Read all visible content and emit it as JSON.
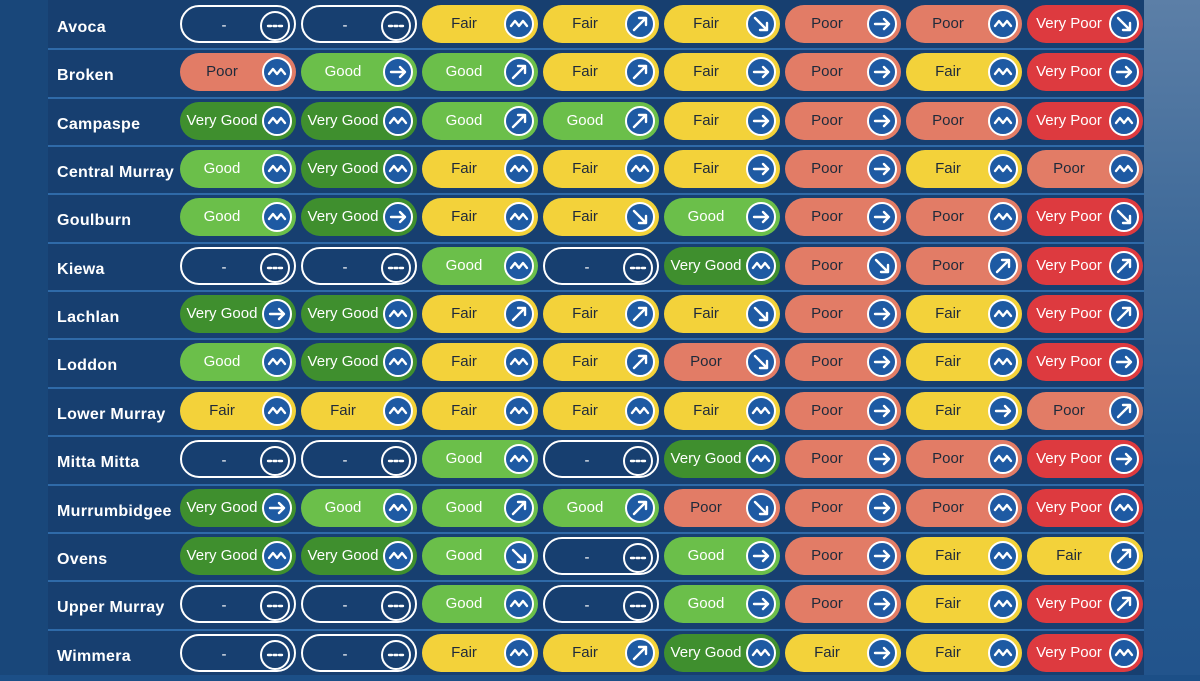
{
  "colors": {
    "very_good": "#3f8f2e",
    "good": "#6bbf4a",
    "fair": "#f3d23a",
    "poor": "#e27c66",
    "very_poor": "#dd3a3f",
    "no_data": "outline-white"
  },
  "rows": [
    {
      "name": "Avoca",
      "cells": [
        {
          "label": "-",
          "status": "none",
          "trend": "no-data-icon"
        },
        {
          "label": "-",
          "status": "none",
          "trend": "no-data-icon"
        },
        {
          "label": "Fair",
          "status": "fair",
          "trend": "variable-icon"
        },
        {
          "label": "Fair",
          "status": "fair",
          "trend": "arrow-up-icon"
        },
        {
          "label": "Fair",
          "status": "fair",
          "trend": "arrow-down-icon"
        },
        {
          "label": "Poor",
          "status": "poor",
          "trend": "arrow-right-icon"
        },
        {
          "label": "Poor",
          "status": "poor",
          "trend": "variable-icon"
        },
        {
          "label": "Very Poor",
          "status": "vpoor",
          "trend": "arrow-down-icon"
        }
      ]
    },
    {
      "name": "Broken",
      "cells": [
        {
          "label": "Poor",
          "status": "poor",
          "trend": "variable-icon"
        },
        {
          "label": "Good",
          "status": "good",
          "trend": "arrow-right-icon"
        },
        {
          "label": "Good",
          "status": "good",
          "trend": "arrow-up-icon"
        },
        {
          "label": "Fair",
          "status": "fair",
          "trend": "arrow-up-icon"
        },
        {
          "label": "Fair",
          "status": "fair",
          "trend": "arrow-right-icon"
        },
        {
          "label": "Poor",
          "status": "poor",
          "trend": "arrow-right-icon"
        },
        {
          "label": "Fair",
          "status": "fair",
          "trend": "variable-icon"
        },
        {
          "label": "Very Poor",
          "status": "vpoor",
          "trend": "arrow-right-icon"
        }
      ]
    },
    {
      "name": "Campaspe",
      "cells": [
        {
          "label": "Very Good",
          "status": "vgood",
          "trend": "variable-icon"
        },
        {
          "label": "Very Good",
          "status": "vgood",
          "trend": "variable-icon"
        },
        {
          "label": "Good",
          "status": "good",
          "trend": "arrow-up-icon"
        },
        {
          "label": "Good",
          "status": "good",
          "trend": "arrow-up-icon"
        },
        {
          "label": "Fair",
          "status": "fair",
          "trend": "arrow-right-icon"
        },
        {
          "label": "Poor",
          "status": "poor",
          "trend": "arrow-right-icon"
        },
        {
          "label": "Poor",
          "status": "poor",
          "trend": "variable-icon"
        },
        {
          "label": "Very Poor",
          "status": "vpoor",
          "trend": "variable-icon"
        }
      ]
    },
    {
      "name": "Central Murray",
      "cells": [
        {
          "label": "Good",
          "status": "good",
          "trend": "variable-icon"
        },
        {
          "label": "Very Good",
          "status": "vgood",
          "trend": "variable-icon"
        },
        {
          "label": "Fair",
          "status": "fair",
          "trend": "variable-icon"
        },
        {
          "label": "Fair",
          "status": "fair",
          "trend": "variable-icon"
        },
        {
          "label": "Fair",
          "status": "fair",
          "trend": "arrow-right-icon"
        },
        {
          "label": "Poor",
          "status": "poor",
          "trend": "arrow-right-icon"
        },
        {
          "label": "Fair",
          "status": "fair",
          "trend": "variable-icon"
        },
        {
          "label": "Poor",
          "status": "poor",
          "trend": "variable-icon"
        }
      ]
    },
    {
      "name": "Goulburn",
      "cells": [
        {
          "label": "Good",
          "status": "good",
          "trend": "variable-icon"
        },
        {
          "label": "Very Good",
          "status": "vgood",
          "trend": "arrow-right-icon"
        },
        {
          "label": "Fair",
          "status": "fair",
          "trend": "variable-icon"
        },
        {
          "label": "Fair",
          "status": "fair",
          "trend": "arrow-down-icon"
        },
        {
          "label": "Good",
          "status": "good",
          "trend": "arrow-right-icon"
        },
        {
          "label": "Poor",
          "status": "poor",
          "trend": "arrow-right-icon"
        },
        {
          "label": "Poor",
          "status": "poor",
          "trend": "variable-icon"
        },
        {
          "label": "Very Poor",
          "status": "vpoor",
          "trend": "arrow-down-icon"
        }
      ]
    },
    {
      "name": "Kiewa",
      "cells": [
        {
          "label": "-",
          "status": "none",
          "trend": "no-data-icon"
        },
        {
          "label": "-",
          "status": "none",
          "trend": "no-data-icon"
        },
        {
          "label": "Good",
          "status": "good",
          "trend": "variable-icon"
        },
        {
          "label": "-",
          "status": "none",
          "trend": "no-data-icon"
        },
        {
          "label": "Very Good",
          "status": "vgood",
          "trend": "variable-icon"
        },
        {
          "label": "Poor",
          "status": "poor",
          "trend": "arrow-down-icon"
        },
        {
          "label": "Poor",
          "status": "poor",
          "trend": "arrow-up-icon"
        },
        {
          "label": "Very Poor",
          "status": "vpoor",
          "trend": "arrow-up-icon"
        }
      ]
    },
    {
      "name": "Lachlan",
      "cells": [
        {
          "label": "Very Good",
          "status": "vgood",
          "trend": "arrow-right-icon"
        },
        {
          "label": "Very Good",
          "status": "vgood",
          "trend": "variable-icon"
        },
        {
          "label": "Fair",
          "status": "fair",
          "trend": "arrow-up-icon"
        },
        {
          "label": "Fair",
          "status": "fair",
          "trend": "arrow-up-icon"
        },
        {
          "label": "Fair",
          "status": "fair",
          "trend": "arrow-down-icon"
        },
        {
          "label": "Poor",
          "status": "poor",
          "trend": "arrow-right-icon"
        },
        {
          "label": "Fair",
          "status": "fair",
          "trend": "variable-icon"
        },
        {
          "label": "Very Poor",
          "status": "vpoor",
          "trend": "arrow-up-icon"
        }
      ]
    },
    {
      "name": "Loddon",
      "cells": [
        {
          "label": "Good",
          "status": "good",
          "trend": "variable-icon"
        },
        {
          "label": "Very Good",
          "status": "vgood",
          "trend": "variable-icon"
        },
        {
          "label": "Fair",
          "status": "fair",
          "trend": "variable-icon"
        },
        {
          "label": "Fair",
          "status": "fair",
          "trend": "arrow-up-icon"
        },
        {
          "label": "Poor",
          "status": "poor",
          "trend": "arrow-down-icon"
        },
        {
          "label": "Poor",
          "status": "poor",
          "trend": "arrow-right-icon"
        },
        {
          "label": "Fair",
          "status": "fair",
          "trend": "variable-icon"
        },
        {
          "label": "Very Poor",
          "status": "vpoor",
          "trend": "arrow-right-icon"
        }
      ]
    },
    {
      "name": "Lower Murray",
      "cells": [
        {
          "label": "Fair",
          "status": "fair",
          "trend": "variable-icon"
        },
        {
          "label": "Fair",
          "status": "fair",
          "trend": "variable-icon"
        },
        {
          "label": "Fair",
          "status": "fair",
          "trend": "variable-icon"
        },
        {
          "label": "Fair",
          "status": "fair",
          "trend": "variable-icon"
        },
        {
          "label": "Fair",
          "status": "fair",
          "trend": "variable-icon"
        },
        {
          "label": "Poor",
          "status": "poor",
          "trend": "arrow-right-icon"
        },
        {
          "label": "Fair",
          "status": "fair",
          "trend": "arrow-right-icon"
        },
        {
          "label": "Poor",
          "status": "poor",
          "trend": "arrow-up-icon"
        }
      ]
    },
    {
      "name": "Mitta Mitta",
      "cells": [
        {
          "label": "-",
          "status": "none",
          "trend": "no-data-icon"
        },
        {
          "label": "-",
          "status": "none",
          "trend": "no-data-icon"
        },
        {
          "label": "Good",
          "status": "good",
          "trend": "variable-icon"
        },
        {
          "label": "-",
          "status": "none",
          "trend": "no-data-icon"
        },
        {
          "label": "Very Good",
          "status": "vgood",
          "trend": "variable-icon"
        },
        {
          "label": "Poor",
          "status": "poor",
          "trend": "arrow-right-icon"
        },
        {
          "label": "Poor",
          "status": "poor",
          "trend": "variable-icon"
        },
        {
          "label": "Very Poor",
          "status": "vpoor",
          "trend": "arrow-right-icon"
        }
      ]
    },
    {
      "name": "Murrumbidgee",
      "cells": [
        {
          "label": "Very Good",
          "status": "vgood",
          "trend": "arrow-right-icon"
        },
        {
          "label": "Good",
          "status": "good",
          "trend": "variable-icon"
        },
        {
          "label": "Good",
          "status": "good",
          "trend": "arrow-up-icon"
        },
        {
          "label": "Good",
          "status": "good",
          "trend": "arrow-up-icon"
        },
        {
          "label": "Poor",
          "status": "poor",
          "trend": "arrow-down-icon"
        },
        {
          "label": "Poor",
          "status": "poor",
          "trend": "arrow-right-icon"
        },
        {
          "label": "Poor",
          "status": "poor",
          "trend": "variable-icon"
        },
        {
          "label": "Very Poor",
          "status": "vpoor",
          "trend": "variable-icon"
        }
      ]
    },
    {
      "name": "Ovens",
      "cells": [
        {
          "label": "Very Good",
          "status": "vgood",
          "trend": "variable-icon"
        },
        {
          "label": "Very Good",
          "status": "vgood",
          "trend": "variable-icon"
        },
        {
          "label": "Good",
          "status": "good",
          "trend": "arrow-down-icon"
        },
        {
          "label": "-",
          "status": "none",
          "trend": "no-data-icon"
        },
        {
          "label": "Good",
          "status": "good",
          "trend": "arrow-right-icon"
        },
        {
          "label": "Poor",
          "status": "poor",
          "trend": "arrow-right-icon"
        },
        {
          "label": "Fair",
          "status": "fair",
          "trend": "variable-icon"
        },
        {
          "label": "Fair",
          "status": "fair",
          "trend": "arrow-up-icon"
        }
      ]
    },
    {
      "name": "Upper Murray",
      "cells": [
        {
          "label": "-",
          "status": "none",
          "trend": "no-data-icon"
        },
        {
          "label": "-",
          "status": "none",
          "trend": "no-data-icon"
        },
        {
          "label": "Good",
          "status": "good",
          "trend": "variable-icon"
        },
        {
          "label": "-",
          "status": "none",
          "trend": "no-data-icon"
        },
        {
          "label": "Good",
          "status": "good",
          "trend": "arrow-right-icon"
        },
        {
          "label": "Poor",
          "status": "poor",
          "trend": "arrow-right-icon"
        },
        {
          "label": "Fair",
          "status": "fair",
          "trend": "variable-icon"
        },
        {
          "label": "Very Poor",
          "status": "vpoor",
          "trend": "arrow-up-icon"
        }
      ]
    },
    {
      "name": "Wimmera",
      "cells": [
        {
          "label": "-",
          "status": "none",
          "trend": "no-data-icon"
        },
        {
          "label": "-",
          "status": "none",
          "trend": "no-data-icon"
        },
        {
          "label": "Fair",
          "status": "fair",
          "trend": "variable-icon"
        },
        {
          "label": "Fair",
          "status": "fair",
          "trend": "arrow-up-icon"
        },
        {
          "label": "Very Good",
          "status": "vgood",
          "trend": "variable-icon"
        },
        {
          "label": "Fair",
          "status": "fair",
          "trend": "arrow-right-icon"
        },
        {
          "label": "Fair",
          "status": "fair",
          "trend": "variable-icon"
        },
        {
          "label": "Very Poor",
          "status": "vpoor",
          "trend": "variable-icon"
        }
      ]
    }
  ]
}
